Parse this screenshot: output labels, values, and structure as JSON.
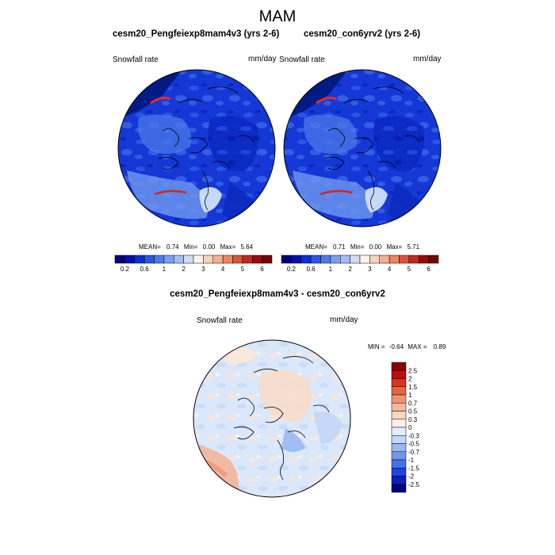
{
  "figure": {
    "title": "MAM"
  },
  "colors": {
    "abs_palette": [
      "#00007f",
      "#0010b0",
      "#0a2ed8",
      "#2a55e8",
      "#4f7ae8",
      "#7a9ef0",
      "#a3bef5",
      "#cfddf7",
      "#fff4ea",
      "#fbd3bd",
      "#f6ae91",
      "#f08263",
      "#e0523a",
      "#c3281c",
      "#9b0a0a",
      "#7a0000"
    ],
    "diff_palette": [
      "#00007f",
      "#0b1fbf",
      "#1e45e0",
      "#4572e8",
      "#7097ec",
      "#9bb8f2",
      "#c3d6f6",
      "#e4eefb",
      "#fcefe3",
      "#f9d6bf",
      "#f4b99a",
      "#ee9270",
      "#e6663f",
      "#d6371c",
      "#b81208",
      "#8c0000"
    ]
  },
  "chart_data": [
    {
      "type": "heatmap",
      "title": "cesm20_Pengfeiexp8mam4v3 (yrs 2-6)",
      "variable_label": "Snowfall rate",
      "units": "mm/day",
      "projection": "polar stereographic (north)",
      "stats": {
        "mean_label": "MEAN=",
        "mean": "0.74",
        "min_label": "Min=",
        "min": "0.00",
        "max_label": "Max=",
        "max": "5.64"
      },
      "colorbar": {
        "orientation": "horizontal",
        "tick_labels": [
          "0.2",
          "0.6",
          "1",
          "2",
          "3",
          "4",
          "5",
          "6"
        ]
      }
    },
    {
      "type": "heatmap",
      "title": "cesm20_con6yrv2 (yrs 2-6)",
      "variable_label": "Snowfall rate",
      "units": "mm/day",
      "projection": "polar stereographic (north)",
      "stats": {
        "mean_label": "MEAN=",
        "mean": "0.71",
        "min_label": "Min=",
        "min": "0.00",
        "max_label": "Max=",
        "max": "5.71"
      },
      "colorbar": {
        "orientation": "horizontal",
        "tick_labels": [
          "0.2",
          "0.6",
          "1",
          "2",
          "3",
          "4",
          "5",
          "6"
        ]
      }
    },
    {
      "type": "heatmap",
      "title": "cesm20_Pengfeiexp8mam4v3 - cesm20_con6yrv2",
      "variable_label": "Snowfall rate",
      "units": "mm/day",
      "projection": "polar stereographic (north)",
      "stats": {
        "min_label": "MIN =",
        "min": "-0.64",
        "max_label": "MAX =",
        "max": "0.89"
      },
      "colorbar": {
        "orientation": "vertical",
        "tick_labels": [
          "2.5",
          "2",
          "1.5",
          "1",
          "0.7",
          "0.5",
          "0.3",
          "0",
          "-0.3",
          "-0.5",
          "-0.7",
          "-1",
          "-1.5",
          "-2",
          "-2.5"
        ]
      }
    }
  ]
}
